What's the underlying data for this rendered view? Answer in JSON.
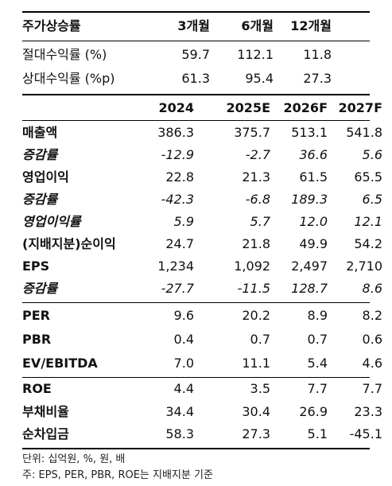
{
  "top_table": {
    "header": [
      "주가상승률",
      "3개월",
      "6개월",
      "12개월"
    ],
    "rows": [
      {
        "label": "절대수익률 (%)",
        "values": [
          "59.7",
          "112.1",
          "11.8"
        ]
      },
      {
        "label": "상대수익률 (%p)",
        "values": [
          "61.3",
          "95.4",
          "27.3"
        ]
      }
    ]
  },
  "main_table": {
    "years": [
      "2024",
      "2025E",
      "2026F",
      "2027F"
    ],
    "rows": [
      {
        "label": "매출액",
        "values": [
          "386.3",
          "375.7",
          "513.1",
          "541.8"
        ]
      },
      {
        "label": "증감률",
        "values": [
          "-12.9",
          "-2.7",
          "36.6",
          "5.6"
        ]
      },
      {
        "label": "영업이익",
        "values": [
          "22.8",
          "21.3",
          "61.5",
          "65.5"
        ]
      },
      {
        "label": "증감률",
        "values": [
          "-42.3",
          "-6.8",
          "189.3",
          "6.5"
        ]
      },
      {
        "label": "영업이익률",
        "values": [
          "5.9",
          "5.7",
          "12.0",
          "12.1"
        ]
      },
      {
        "label": "(지배지분)순이익",
        "values": [
          "24.7",
          "21.8",
          "49.9",
          "54.2"
        ]
      },
      {
        "label": "EPS",
        "values": [
          "1,234",
          "1,092",
          "2,497",
          "2,710"
        ]
      },
      {
        "label": "증감률",
        "values": [
          "-27.7",
          "-11.5",
          "128.7",
          "8.6"
        ]
      },
      {
        "label": "PER",
        "values": [
          "9.6",
          "20.2",
          "8.9",
          "8.2"
        ]
      },
      {
        "label": "PBR",
        "values": [
          "0.4",
          "0.7",
          "0.7",
          "0.6"
        ]
      },
      {
        "label": "EV/EBITDA",
        "values": [
          "7.0",
          "11.1",
          "5.4",
          "4.6"
        ]
      },
      {
        "label": "ROE",
        "values": [
          "4.4",
          "3.5",
          "7.7",
          "7.7"
        ]
      },
      {
        "label": "부채비율",
        "values": [
          "34.4",
          "30.4",
          "26.9",
          "23.3"
        ]
      },
      {
        "label": "순차입금",
        "values": [
          "58.3",
          "27.3",
          "5.1",
          "-45.1"
        ]
      }
    ]
  },
  "footnotes": {
    "unit": "단위: 십억원, %, 원, 배",
    "note": "주: EPS, PER, PBR, ROE는 지배지분 기준"
  }
}
